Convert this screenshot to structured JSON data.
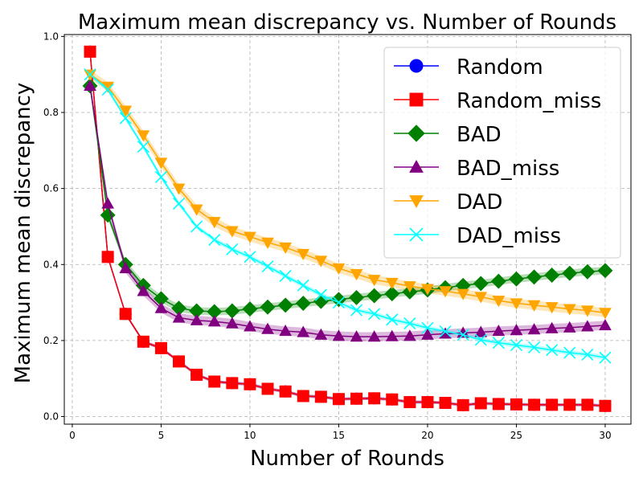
{
  "chart_data": {
    "type": "line",
    "title": "Maximum mean discrepancy vs. Number of Rounds",
    "xlabel": "Number of Rounds",
    "ylabel": "Maximum mean discrepancy",
    "xlim": [
      -0.45,
      31.45
    ],
    "ylim": [
      -0.02,
      1.005
    ],
    "xticks": [
      0,
      5,
      10,
      15,
      20,
      25,
      30
    ],
    "yticks": [
      0.0,
      0.2,
      0.4,
      0.6,
      0.8,
      1.0
    ],
    "xtick_labels": [
      "0",
      "5",
      "10",
      "15",
      "20",
      "25",
      "30"
    ],
    "ytick_labels": [
      "0.0",
      "0.2",
      "0.4",
      "0.6",
      "0.8",
      "1.0"
    ],
    "grid": true,
    "legend_position": "top-right",
    "x": [
      1,
      2,
      3,
      4,
      5,
      6,
      7,
      8,
      9,
      10,
      11,
      12,
      13,
      14,
      15,
      16,
      17,
      18,
      19,
      20,
      21,
      22,
      23,
      24,
      25,
      26,
      27,
      28,
      29,
      30
    ],
    "series": [
      {
        "name": "Random",
        "color": "#0000ff",
        "marker": "circle",
        "values": [
          0.96,
          0.42,
          0.27,
          0.197,
          0.18,
          0.145,
          0.11,
          0.092,
          0.088,
          0.085,
          0.073,
          0.066,
          0.054,
          0.052,
          0.046,
          0.047,
          0.048,
          0.045,
          0.038,
          0.038,
          0.036,
          0.03,
          0.035,
          0.033,
          0.032,
          0.031,
          0.031,
          0.031,
          0.031,
          0.028
        ],
        "band": 0.004
      },
      {
        "name": "Random_miss",
        "color": "#ff0000",
        "marker": "square",
        "values": [
          0.96,
          0.42,
          0.27,
          0.197,
          0.18,
          0.145,
          0.11,
          0.092,
          0.088,
          0.085,
          0.073,
          0.066,
          0.054,
          0.052,
          0.046,
          0.047,
          0.048,
          0.045,
          0.038,
          0.038,
          0.036,
          0.03,
          0.035,
          0.033,
          0.032,
          0.031,
          0.031,
          0.031,
          0.031,
          0.028
        ],
        "band": 0.004
      },
      {
        "name": "BAD",
        "color": "#008000",
        "marker": "diamond",
        "values": [
          0.87,
          0.53,
          0.4,
          0.345,
          0.31,
          0.285,
          0.278,
          0.276,
          0.278,
          0.283,
          0.288,
          0.293,
          0.298,
          0.303,
          0.308,
          0.313,
          0.318,
          0.323,
          0.328,
          0.333,
          0.339,
          0.345,
          0.35,
          0.356,
          0.362,
          0.367,
          0.372,
          0.377,
          0.381,
          0.384
        ],
        "band": 0.01
      },
      {
        "name": "BAD_miss",
        "color": "#800080",
        "marker": "triangle-up",
        "values": [
          0.87,
          0.56,
          0.39,
          0.33,
          0.285,
          0.26,
          0.253,
          0.25,
          0.245,
          0.237,
          0.23,
          0.225,
          0.222,
          0.215,
          0.212,
          0.21,
          0.21,
          0.211,
          0.212,
          0.215,
          0.218,
          0.22,
          0.222,
          0.225,
          0.227,
          0.229,
          0.232,
          0.234,
          0.237,
          0.24
        ],
        "band": 0.012
      },
      {
        "name": "DAD",
        "color": "#ffa500",
        "marker": "triangle-down",
        "values": [
          0.9,
          0.868,
          0.805,
          0.74,
          0.668,
          0.6,
          0.545,
          0.512,
          0.488,
          0.473,
          0.458,
          0.445,
          0.428,
          0.41,
          0.39,
          0.375,
          0.36,
          0.352,
          0.343,
          0.336,
          0.33,
          0.323,
          0.315,
          0.305,
          0.298,
          0.293,
          0.288,
          0.283,
          0.279,
          0.273
        ],
        "band": 0.012
      },
      {
        "name": "DAD_miss",
        "color": "#00ffff",
        "marker": "x",
        "values": [
          0.9,
          0.86,
          0.785,
          0.71,
          0.63,
          0.56,
          0.5,
          0.465,
          0.44,
          0.42,
          0.395,
          0.37,
          0.345,
          0.32,
          0.3,
          0.28,
          0.27,
          0.255,
          0.245,
          0.233,
          0.224,
          0.215,
          0.202,
          0.194,
          0.188,
          0.182,
          0.175,
          0.168,
          0.163,
          0.155
        ],
        "band": 0.006
      }
    ]
  }
}
